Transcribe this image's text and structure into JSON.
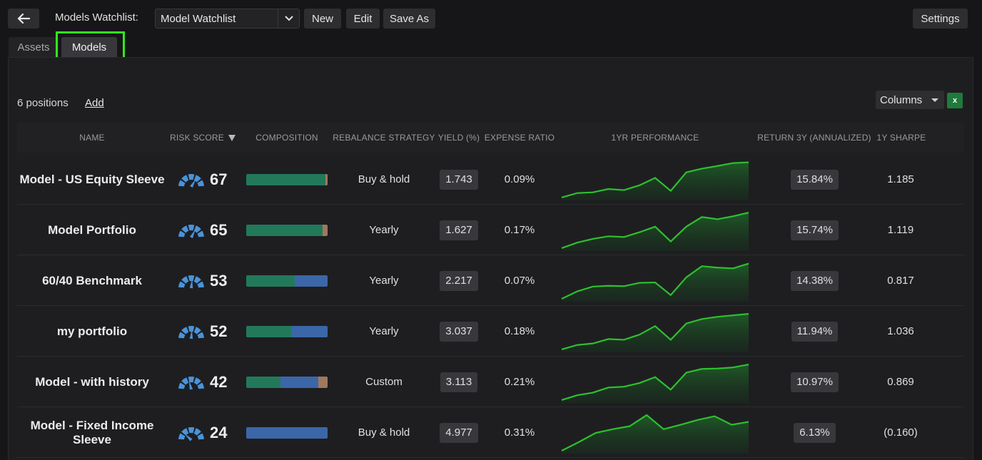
{
  "toolbar": {
    "back_icon": "arrow-left-icon",
    "watchlist_label": "Models Watchlist:",
    "watchlist_value": "Model Watchlist",
    "new_label": "New",
    "edit_label": "Edit",
    "saveas_label": "Save As",
    "settings_label": "Settings"
  },
  "tabs": [
    {
      "label": "Assets",
      "selected": false
    },
    {
      "label": "Models",
      "selected": true
    }
  ],
  "list": {
    "positions_label": "6 positions",
    "add_label": "Add",
    "columns_label": "Columns",
    "excel_icon": "excel-export-icon",
    "excel_glyph": "x"
  },
  "columns": [
    "NAME",
    "RISK SCORE",
    "COMPOSITION",
    "REBALANCE STRATEGY",
    "YIELD (%)",
    "EXPENSE RATIO",
    "1YR PERFORMANCE",
    "RETURN 3Y (ANNUALIZED)",
    "1Y SHARPE"
  ],
  "colors": {
    "equity": "#22795a",
    "fixed_income": "#3b67a8",
    "other": "#a1785e",
    "sparkline": "#2fbf2f",
    "gauge": "#4a93d9",
    "highlight": "#33e81c"
  },
  "rows": [
    {
      "name": "Model - US Equity Sleeve",
      "risk": "67",
      "risk_level": 0.67,
      "composition": [
        {
          "type": "equity",
          "pct": 97
        },
        {
          "type": "other",
          "pct": 3
        }
      ],
      "rebalance": "Buy & hold",
      "yield": "1.743",
      "expense": "0.09%",
      "perf": [
        0.02,
        0.14,
        0.16,
        0.25,
        0.22,
        0.35,
        0.55,
        0.2,
        0.7,
        0.8,
        0.87,
        0.95,
        0.97
      ],
      "return3y": "15.84%",
      "sharpe": "1.185"
    },
    {
      "name": "Model Portfolio",
      "risk": "65",
      "risk_level": 0.65,
      "composition": [
        {
          "type": "equity",
          "pct": 94
        },
        {
          "type": "other",
          "pct": 6
        }
      ],
      "rebalance": "Yearly",
      "yield": "1.627",
      "expense": "0.17%",
      "perf": [
        0.02,
        0.17,
        0.27,
        0.34,
        0.32,
        0.45,
        0.6,
        0.2,
        0.6,
        0.86,
        0.8,
        0.88,
        0.98
      ],
      "return3y": "15.74%",
      "sharpe": "1.119"
    },
    {
      "name": "60/40 Benchmark",
      "risk": "53",
      "risk_level": 0.53,
      "composition": [
        {
          "type": "equity",
          "pct": 60
        },
        {
          "type": "fixed_income",
          "pct": 40
        }
      ],
      "rebalance": "Yearly",
      "yield": "2.217",
      "expense": "0.07%",
      "perf": [
        0.02,
        0.22,
        0.35,
        0.37,
        0.36,
        0.45,
        0.46,
        0.12,
        0.6,
        0.9,
        0.86,
        0.84,
        0.97
      ],
      "return3y": "14.38%",
      "sharpe": "0.817"
    },
    {
      "name": "my portfolio",
      "risk": "52",
      "risk_level": 0.52,
      "composition": [
        {
          "type": "equity",
          "pct": 56
        },
        {
          "type": "fixed_income",
          "pct": 44
        }
      ],
      "rebalance": "Yearly",
      "yield": "3.037",
      "expense": "0.18%",
      "perf": [
        0.02,
        0.14,
        0.18,
        0.3,
        0.28,
        0.42,
        0.65,
        0.28,
        0.72,
        0.84,
        0.9,
        0.94,
        0.98
      ],
      "return3y": "11.94%",
      "sharpe": "1.036"
    },
    {
      "name": "Model - with history",
      "risk": "42",
      "risk_level": 0.42,
      "composition": [
        {
          "type": "equity",
          "pct": 42
        },
        {
          "type": "fixed_income",
          "pct": 47
        },
        {
          "type": "other",
          "pct": 11
        }
      ],
      "rebalance": "Custom",
      "yield": "3.113",
      "expense": "0.21%",
      "perf": [
        0.02,
        0.15,
        0.22,
        0.36,
        0.38,
        0.48,
        0.64,
        0.3,
        0.76,
        0.86,
        0.87,
        0.9,
        0.98
      ],
      "return3y": "10.97%",
      "sharpe": "0.869"
    },
    {
      "name": "Model - Fixed Income Sleeve",
      "risk": "24",
      "risk_level": 0.24,
      "composition": [
        {
          "type": "fixed_income",
          "pct": 100
        }
      ],
      "rebalance": "Buy & hold",
      "yield": "4.977",
      "expense": "0.31%",
      "perf": [
        0.02,
        0.25,
        0.5,
        0.6,
        0.68,
        0.98,
        0.6,
        0.72,
        0.85,
        0.95,
        0.72,
        0.8
      ],
      "return3y": "6.13%",
      "sharpe": "(0.160)"
    }
  ]
}
